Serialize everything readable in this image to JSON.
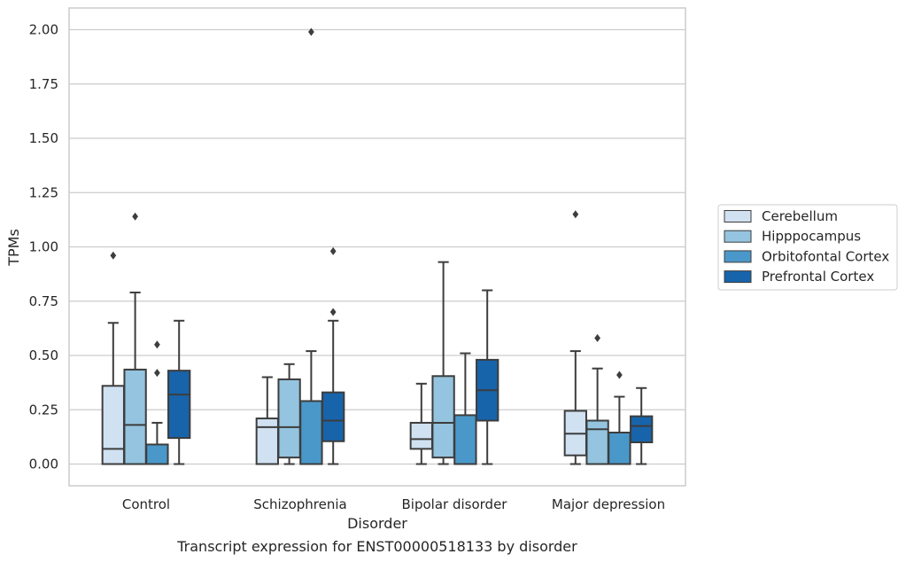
{
  "chart_data": {
    "type": "boxplot",
    "caption": "Transcript expression for ENST00000518133 by disorder",
    "xlabel": "Disorder",
    "ylabel": "TPMs",
    "ylim": [
      -0.1,
      2.1
    ],
    "yticks": [
      "0.00",
      "0.25",
      "0.50",
      "0.75",
      "1.00",
      "1.25",
      "1.50",
      "1.75",
      "2.00"
    ],
    "grid": "horizontal",
    "legend_position": "right",
    "categories": [
      "Control",
      "Schizophrenia",
      "Bipolar disorder",
      "Major depression"
    ],
    "series": [
      {
        "name": "Cerebellum",
        "color": "#d0e1f2",
        "boxes": [
          {
            "whislo": 0.0,
            "q1": 0.0,
            "med": 0.07,
            "q3": 0.36,
            "whishi": 0.65,
            "fliers": [
              0.96
            ]
          },
          {
            "whislo": 0.0,
            "q1": 0.0,
            "med": 0.17,
            "q3": 0.21,
            "whishi": 0.4,
            "fliers": []
          },
          {
            "whislo": 0.0,
            "q1": 0.07,
            "med": 0.115,
            "q3": 0.19,
            "whishi": 0.37,
            "fliers": []
          },
          {
            "whislo": 0.0,
            "q1": 0.04,
            "med": 0.14,
            "q3": 0.245,
            "whishi": 0.52,
            "fliers": [
              1.15
            ]
          }
        ]
      },
      {
        "name": "Hipppocampus",
        "color": "#94c4df",
        "boxes": [
          {
            "whislo": 0.0,
            "q1": 0.0,
            "med": 0.18,
            "q3": 0.435,
            "whishi": 0.79,
            "fliers": [
              1.14
            ]
          },
          {
            "whislo": 0.0,
            "q1": 0.03,
            "med": 0.17,
            "q3": 0.39,
            "whishi": 0.46,
            "fliers": []
          },
          {
            "whislo": 0.0,
            "q1": 0.03,
            "med": 0.19,
            "q3": 0.405,
            "whishi": 0.93,
            "fliers": []
          },
          {
            "whislo": 0.0,
            "q1": 0.0,
            "med": 0.16,
            "q3": 0.2,
            "whishi": 0.44,
            "fliers": [
              0.58
            ]
          }
        ]
      },
      {
        "name": "Orbitofontal Cortex",
        "color": "#4a98c9",
        "boxes": [
          {
            "whislo": 0.0,
            "q1": 0.0,
            "med": 0.0,
            "q3": 0.09,
            "whishi": 0.19,
            "fliers": [
              0.42,
              0.55
            ]
          },
          {
            "whislo": 0.0,
            "q1": 0.0,
            "med": 0.0,
            "q3": 0.29,
            "whishi": 0.52,
            "fliers": [
              1.99
            ]
          },
          {
            "whislo": 0.0,
            "q1": 0.0,
            "med": 0.0,
            "q3": 0.225,
            "whishi": 0.51,
            "fliers": []
          },
          {
            "whislo": 0.0,
            "q1": 0.0,
            "med": 0.0,
            "q3": 0.145,
            "whishi": 0.31,
            "fliers": [
              0.41
            ]
          }
        ]
      },
      {
        "name": "Prefrontal Cortex",
        "color": "#1764ab",
        "boxes": [
          {
            "whislo": 0.0,
            "q1": 0.12,
            "med": 0.32,
            "q3": 0.43,
            "whishi": 0.66,
            "fliers": []
          },
          {
            "whislo": 0.0,
            "q1": 0.105,
            "med": 0.2,
            "q3": 0.33,
            "whishi": 0.66,
            "fliers": [
              0.7,
              0.98
            ]
          },
          {
            "whislo": 0.0,
            "q1": 0.2,
            "med": 0.34,
            "q3": 0.48,
            "whishi": 0.8,
            "fliers": []
          },
          {
            "whislo": 0.0,
            "q1": 0.1,
            "med": 0.175,
            "q3": 0.22,
            "whishi": 0.35,
            "fliers": []
          }
        ]
      }
    ]
  }
}
